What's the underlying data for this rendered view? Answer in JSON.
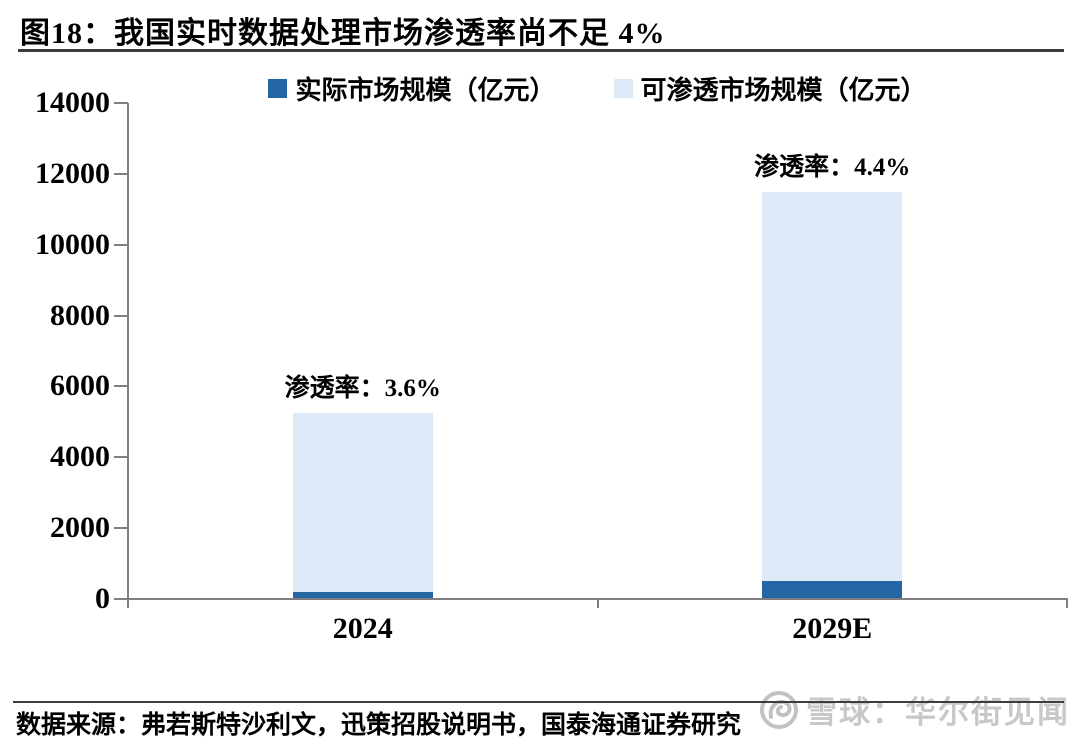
{
  "page": {
    "title": "图18：我国实时数据处理市场渗透率尚不足 4%",
    "source": "数据来源：弗若斯特沙利文，迅策招股说明书，国泰海通证券研究",
    "watermark": {
      "logo": "xueqiu-snowball-logo",
      "text": "雪球：华尔街见闻",
      "color": "#C8C8C8"
    }
  },
  "chart_data": {
    "type": "bar",
    "title": "图18：我国实时数据处理市场渗透率尚不足 4%",
    "categories": [
      "2024",
      "2029E"
    ],
    "series": [
      {
        "name": "实际市场规模（亿元）",
        "values": [
          190,
          510
        ],
        "color": "#2565A3"
      },
      {
        "name": "可渗透市场规模（亿元）",
        "values": [
          5250,
          11500
        ],
        "color": "#DCE9F6"
      }
    ],
    "annotations": [
      {
        "category": "2024",
        "text": "渗透率：3.6%"
      },
      {
        "category": "2029E",
        "text": "渗透率：4.4%"
      }
    ],
    "penetration_rates": [
      "3.6%",
      "4.4%"
    ],
    "xlabel": "",
    "ylabel": "",
    "ylim": [
      0,
      14000
    ],
    "yticks": [
      0,
      2000,
      4000,
      6000,
      8000,
      10000,
      12000,
      14000
    ],
    "grid": false,
    "legend_position": "top",
    "bar_layout": "overlapped",
    "axis_color": "#7F7F7F"
  }
}
